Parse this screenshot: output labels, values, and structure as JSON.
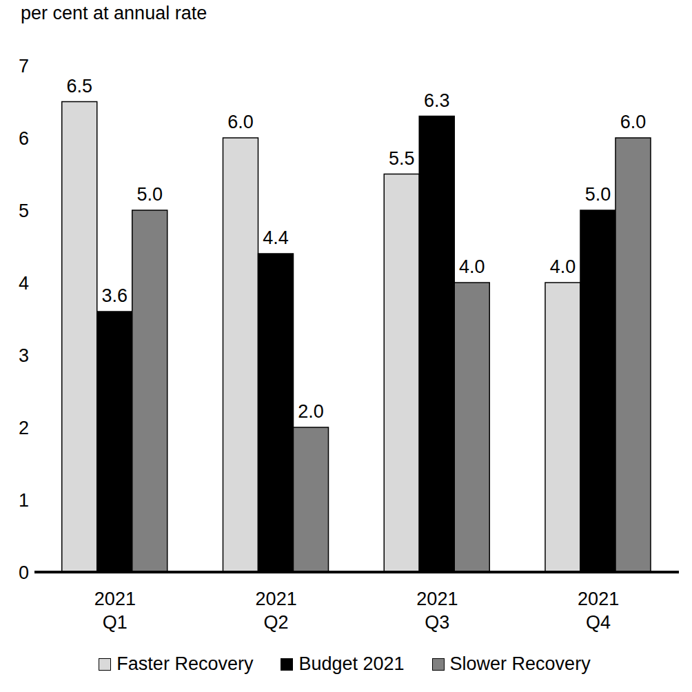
{
  "chart_data": {
    "type": "bar",
    "y_label": "per cent at annual rate",
    "categories": [
      "2021\nQ1",
      "2021\nQ2",
      "2021\nQ3",
      "2021\nQ4"
    ],
    "series": [
      {
        "name": "Faster Recovery",
        "color": "#d9d9d9",
        "values": [
          6.5,
          6.0,
          5.5,
          4.0
        ],
        "value_labels": [
          "6.5",
          "6.0",
          "5.5",
          "4.0"
        ]
      },
      {
        "name": "Budget 2021",
        "color": "#000000",
        "values": [
          3.6,
          4.4,
          6.3,
          5.0
        ],
        "value_labels": [
          "3.6",
          "4.4",
          "6.3",
          "5.0"
        ]
      },
      {
        "name": "Slower Recovery",
        "color": "#808080",
        "values": [
          5.0,
          2.0,
          4.0,
          6.0
        ],
        "value_labels": [
          "5.0",
          "2.0",
          "4.0",
          "6.0"
        ]
      }
    ],
    "ylim": [
      0,
      7
    ],
    "yticks": [
      0,
      1,
      2,
      3,
      4,
      5,
      6,
      7
    ],
    "data_labels": true,
    "legend": "bottom",
    "grid": false
  }
}
